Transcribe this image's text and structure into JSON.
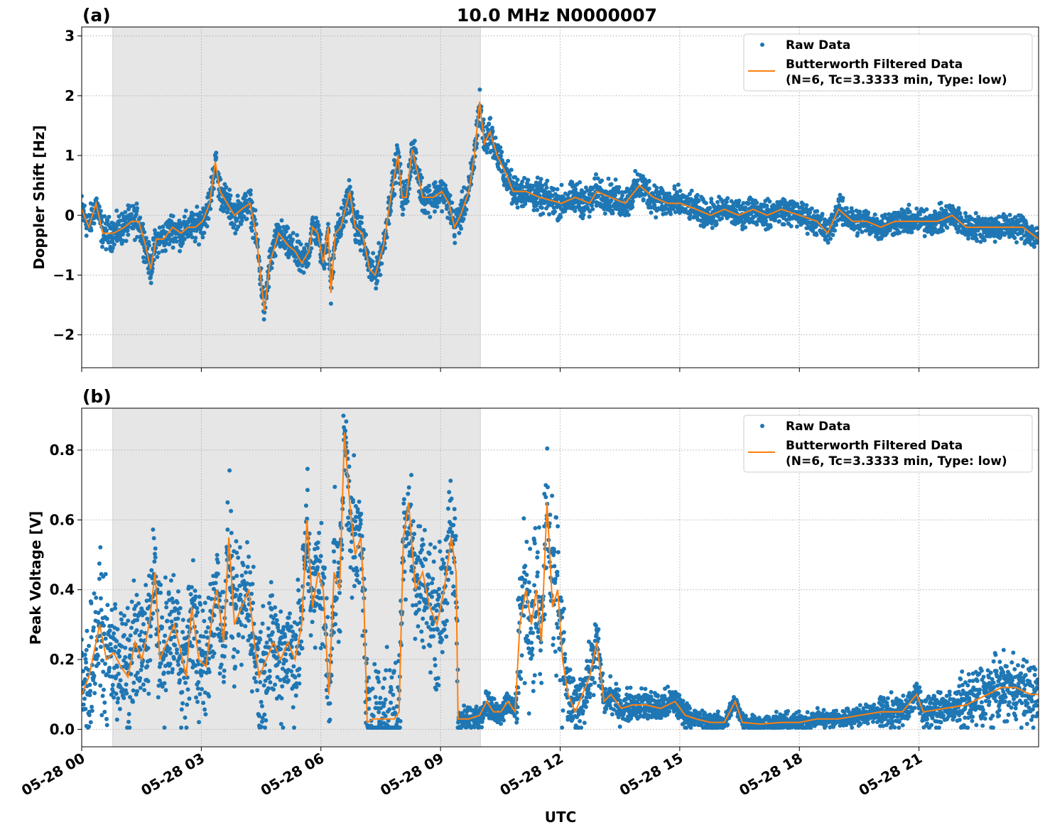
{
  "chart_data": [
    {
      "type": "scatter+line",
      "panel_label": "(a)",
      "title": "10.0 MHz N0000007",
      "xlabel": "",
      "ylabel": "Doppler Shift [Hz]",
      "x_unit": "hour of day UTC on 05-28",
      "xlim": [
        0,
        24
      ],
      "ylim": [
        -2.55,
        3.15
      ],
      "x_ticks": [
        0,
        3,
        6,
        9,
        12,
        15,
        18,
        21
      ],
      "x_tick_labels": [
        "",
        "",
        "",
        "",
        "",
        "",
        "",
        ""
      ],
      "y_ticks": [
        -2,
        -1,
        0,
        1,
        2,
        3
      ],
      "y_tick_labels": [
        "−2",
        "−1",
        "0",
        "1",
        "2",
        "3"
      ],
      "grid": true,
      "shaded_span": [
        0.78,
        10.0
      ],
      "legend": {
        "placement": "top-right",
        "entries": [
          "Raw Data",
          "Butterworth Filtered Data",
          "(N=6, Tc=3.3333 min, Type: low)"
        ]
      },
      "colors": {
        "raw": "#1f77b4",
        "filtered": "#ff7f0e",
        "shade": "#e6e6e6"
      },
      "filtered": [
        [
          0.0,
          0.1
        ],
        [
          0.18,
          -0.2
        ],
        [
          0.36,
          0.2
        ],
        [
          0.53,
          -0.3
        ],
        [
          0.8,
          -0.3
        ],
        [
          1.07,
          -0.2
        ],
        [
          1.25,
          -0.1
        ],
        [
          1.43,
          -0.1
        ],
        [
          1.6,
          -0.5
        ],
        [
          1.73,
          -0.9
        ],
        [
          1.87,
          -0.4
        ],
        [
          2.05,
          -0.4
        ],
        [
          2.28,
          -0.2
        ],
        [
          2.49,
          -0.3
        ],
        [
          2.67,
          -0.2
        ],
        [
          2.85,
          -0.2
        ],
        [
          3.03,
          -0.1
        ],
        [
          3.21,
          0.2
        ],
        [
          3.35,
          0.9
        ],
        [
          3.47,
          0.4
        ],
        [
          3.65,
          0.2
        ],
        [
          3.83,
          0.0
        ],
        [
          4.01,
          0.1
        ],
        [
          4.22,
          0.2
        ],
        [
          4.37,
          -0.3
        ],
        [
          4.58,
          -1.6
        ],
        [
          4.72,
          -0.8
        ],
        [
          4.94,
          -0.3
        ],
        [
          5.17,
          -0.5
        ],
        [
          5.35,
          -0.6
        ],
        [
          5.52,
          -0.8
        ],
        [
          5.7,
          -0.6
        ],
        [
          5.79,
          -0.2
        ],
        [
          5.92,
          -0.3
        ],
        [
          6.06,
          -0.8
        ],
        [
          6.18,
          -0.2
        ],
        [
          6.25,
          -1.3
        ],
        [
          6.36,
          -0.3
        ],
        [
          6.5,
          -0.2
        ],
        [
          6.72,
          0.4
        ],
        [
          6.86,
          -0.2
        ],
        [
          7.04,
          -0.3
        ],
        [
          7.22,
          -0.9
        ],
        [
          7.36,
          -1.0
        ],
        [
          7.57,
          -0.5
        ],
        [
          7.75,
          0.3
        ],
        [
          7.93,
          1.0
        ],
        [
          8.04,
          0.3
        ],
        [
          8.14,
          0.3
        ],
        [
          8.29,
          1.1
        ],
        [
          8.43,
          0.7
        ],
        [
          8.55,
          0.3
        ],
        [
          8.82,
          0.3
        ],
        [
          9.03,
          0.4
        ],
        [
          9.21,
          0.2
        ],
        [
          9.35,
          -0.2
        ],
        [
          9.5,
          0.0
        ],
        [
          9.71,
          0.4
        ],
        [
          9.85,
          1.0
        ],
        [
          9.98,
          1.9
        ],
        [
          10.1,
          1.2
        ],
        [
          10.24,
          1.4
        ],
        [
          10.42,
          1.0
        ],
        [
          10.64,
          0.7
        ],
        [
          10.82,
          0.4
        ],
        [
          11.14,
          0.4
        ],
        [
          11.49,
          0.3
        ],
        [
          12.03,
          0.2
        ],
        [
          12.38,
          0.3
        ],
        [
          12.74,
          0.2
        ],
        [
          12.92,
          0.4
        ],
        [
          13.27,
          0.3
        ],
        [
          13.63,
          0.2
        ],
        [
          13.99,
          0.5
        ],
        [
          14.34,
          0.3
        ],
        [
          14.7,
          0.2
        ],
        [
          15.02,
          0.2
        ],
        [
          15.41,
          0.1
        ],
        [
          15.77,
          0.0
        ],
        [
          16.12,
          0.1
        ],
        [
          16.48,
          0.0
        ],
        [
          16.84,
          0.1
        ],
        [
          17.19,
          0.0
        ],
        [
          17.55,
          0.1
        ],
        [
          18.01,
          0.0
        ],
        [
          18.44,
          -0.1
        ],
        [
          18.71,
          -0.3
        ],
        [
          18.98,
          0.1
        ],
        [
          19.33,
          -0.1
        ],
        [
          19.69,
          -0.1
        ],
        [
          20.04,
          -0.2
        ],
        [
          20.4,
          -0.1
        ],
        [
          20.76,
          -0.1
        ],
        [
          21.11,
          -0.1
        ],
        [
          21.47,
          -0.1
        ],
        [
          21.83,
          0.0
        ],
        [
          22.18,
          -0.2
        ],
        [
          22.54,
          -0.2
        ],
        [
          22.9,
          -0.2
        ],
        [
          23.25,
          -0.2
        ],
        [
          23.61,
          -0.2
        ],
        [
          24.0,
          -0.4
        ]
      ],
      "raw_spread": [
        [
          0,
          10.5,
          0.3
        ],
        [
          10.5,
          15,
          0.3
        ],
        [
          15,
          24,
          0.25
        ]
      ]
    },
    {
      "type": "scatter+line",
      "panel_label": "(b)",
      "xlabel": "UTC",
      "ylabel": "Peak Voltage [V]",
      "x_unit": "hour of day UTC on 05-28",
      "xlim": [
        0,
        24
      ],
      "ylim": [
        -0.05,
        0.92
      ],
      "x_ticks": [
        0,
        3,
        6,
        9,
        12,
        15,
        18,
        21
      ],
      "x_tick_labels": [
        "05-28 00",
        "05-28 03",
        "05-28 06",
        "05-28 09",
        "05-28 12",
        "05-28 15",
        "05-28 18",
        "05-28 21"
      ],
      "y_ticks": [
        0,
        0.2,
        0.4,
        0.6,
        0.8
      ],
      "y_tick_labels": [
        "0.0",
        "0.2",
        "0.4",
        "0.6",
        "0.8"
      ],
      "grid": true,
      "shaded_span": [
        0.78,
        10.0
      ],
      "legend": {
        "placement": "top-right",
        "entries": [
          "Raw Data",
          "Butterworth Filtered Data",
          "(N=6, Tc=3.3333 min, Type: low)"
        ]
      },
      "colors": {
        "raw": "#1f77b4",
        "filtered": "#ff7f0e",
        "shade": "#e6e6e6"
      },
      "filtered": [
        [
          0.0,
          0.1
        ],
        [
          0.18,
          0.15
        ],
        [
          0.36,
          0.25
        ],
        [
          0.45,
          0.3
        ],
        [
          0.62,
          0.2
        ],
        [
          0.8,
          0.22
        ],
        [
          0.98,
          0.18
        ],
        [
          1.16,
          0.15
        ],
        [
          1.34,
          0.25
        ],
        [
          1.51,
          0.2
        ],
        [
          1.69,
          0.3
        ],
        [
          1.84,
          0.45
        ],
        [
          1.96,
          0.2
        ],
        [
          2.14,
          0.25
        ],
        [
          2.32,
          0.3
        ],
        [
          2.49,
          0.22
        ],
        [
          2.62,
          0.15
        ],
        [
          2.76,
          0.35
        ],
        [
          2.94,
          0.2
        ],
        [
          3.12,
          0.18
        ],
        [
          3.3,
          0.35
        ],
        [
          3.39,
          0.4
        ],
        [
          3.56,
          0.25
        ],
        [
          3.69,
          0.55
        ],
        [
          3.83,
          0.3
        ],
        [
          4.01,
          0.35
        ],
        [
          4.19,
          0.4
        ],
        [
          4.33,
          0.25
        ],
        [
          4.45,
          0.15
        ],
        [
          4.63,
          0.2
        ],
        [
          4.81,
          0.25
        ],
        [
          4.99,
          0.2
        ],
        [
          5.17,
          0.25
        ],
        [
          5.35,
          0.2
        ],
        [
          5.52,
          0.3
        ],
        [
          5.65,
          0.6
        ],
        [
          5.79,
          0.35
        ],
        [
          5.93,
          0.45
        ],
        [
          6.06,
          0.4
        ],
        [
          6.2,
          0.1
        ],
        [
          6.33,
          0.45
        ],
        [
          6.47,
          0.4
        ],
        [
          6.59,
          0.85
        ],
        [
          6.72,
          0.65
        ],
        [
          6.86,
          0.5
        ],
        [
          7.0,
          0.55
        ],
        [
          7.07,
          0.4
        ],
        [
          7.16,
          0.02
        ],
        [
          7.31,
          0.03
        ],
        [
          7.57,
          0.03
        ],
        [
          7.84,
          0.03
        ],
        [
          7.96,
          0.05
        ],
        [
          8.07,
          0.55
        ],
        [
          8.2,
          0.65
        ],
        [
          8.37,
          0.4
        ],
        [
          8.55,
          0.45
        ],
        [
          8.73,
          0.35
        ],
        [
          8.91,
          0.3
        ],
        [
          9.09,
          0.4
        ],
        [
          9.27,
          0.55
        ],
        [
          9.39,
          0.45
        ],
        [
          9.44,
          0.03
        ],
        [
          9.71,
          0.03
        ],
        [
          9.98,
          0.04
        ],
        [
          10.16,
          0.08
        ],
        [
          10.33,
          0.05
        ],
        [
          10.51,
          0.05
        ],
        [
          10.69,
          0.08
        ],
        [
          10.87,
          0.05
        ],
        [
          10.99,
          0.3
        ],
        [
          11.14,
          0.4
        ],
        [
          11.28,
          0.3
        ],
        [
          11.4,
          0.4
        ],
        [
          11.53,
          0.25
        ],
        [
          11.67,
          0.65
        ],
        [
          11.81,
          0.35
        ],
        [
          11.94,
          0.4
        ],
        [
          12.06,
          0.2
        ],
        [
          12.2,
          0.1
        ],
        [
          12.38,
          0.05
        ],
        [
          12.56,
          0.1
        ],
        [
          12.74,
          0.15
        ],
        [
          12.92,
          0.25
        ],
        [
          13.1,
          0.08
        ],
        [
          13.27,
          0.1
        ],
        [
          13.54,
          0.06
        ],
        [
          13.81,
          0.07
        ],
        [
          14.16,
          0.07
        ],
        [
          14.52,
          0.06
        ],
        [
          14.88,
          0.08
        ],
        [
          15.14,
          0.04
        ],
        [
          15.41,
          0.03
        ],
        [
          15.77,
          0.02
        ],
        [
          16.12,
          0.02
        ],
        [
          16.39,
          0.08
        ],
        [
          16.57,
          0.02
        ],
        [
          17.02,
          0.015
        ],
        [
          17.55,
          0.02
        ],
        [
          18.01,
          0.02
        ],
        [
          18.44,
          0.03
        ],
        [
          18.98,
          0.03
        ],
        [
          19.51,
          0.04
        ],
        [
          20.04,
          0.05
        ],
        [
          20.58,
          0.05
        ],
        [
          20.94,
          0.1
        ],
        [
          21.11,
          0.05
        ],
        [
          21.65,
          0.06
        ],
        [
          22.18,
          0.07
        ],
        [
          22.72,
          0.1
        ],
        [
          23.07,
          0.12
        ],
        [
          23.43,
          0.12
        ],
        [
          23.79,
          0.1
        ],
        [
          24.0,
          0.1
        ]
      ],
      "raw_spread": [
        [
          0,
          9.45,
          0.2
        ],
        [
          9.45,
          10.9,
          0.04
        ],
        [
          10.9,
          12.1,
          0.25
        ],
        [
          12.1,
          13,
          0.1
        ],
        [
          13,
          15.2,
          0.05
        ],
        [
          15.2,
          20,
          0.03
        ],
        [
          20,
          22,
          0.05
        ],
        [
          22,
          24,
          0.1
        ]
      ]
    }
  ]
}
